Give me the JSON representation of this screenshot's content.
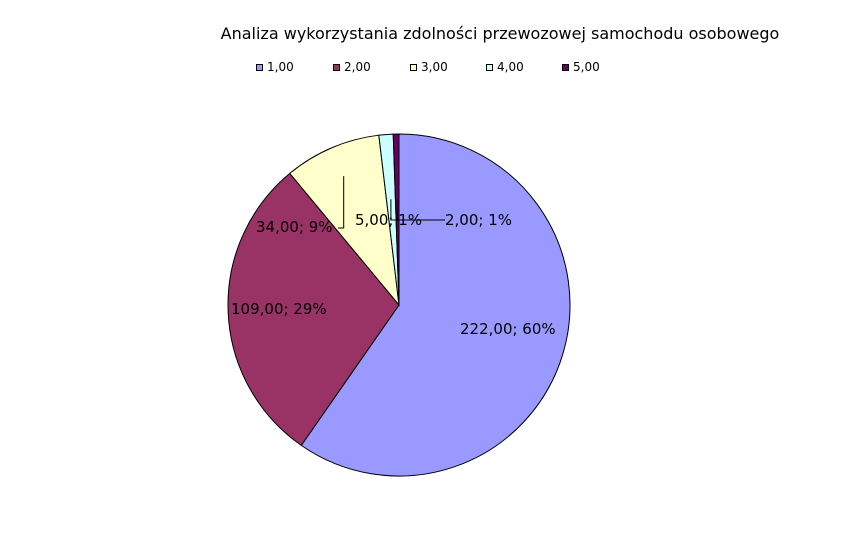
{
  "chart_data": {
    "type": "pie",
    "title": "Analiza wykorzystania zdolności przewozowej samochodu osobowego",
    "legend_position": "top",
    "categories": [
      "1,00",
      "2,00",
      "3,00",
      "4,00",
      "5,00"
    ],
    "values": [
      222,
      109,
      34,
      5,
      2
    ],
    "colors": [
      "#9999ff",
      "#993366",
      "#ffffcc",
      "#ccffff",
      "#660066"
    ],
    "data_labels": [
      "222,00; 60%",
      "109,00; 29%",
      "34,00; 9%",
      "5,00; 1%",
      "2,00; 1%"
    ]
  }
}
